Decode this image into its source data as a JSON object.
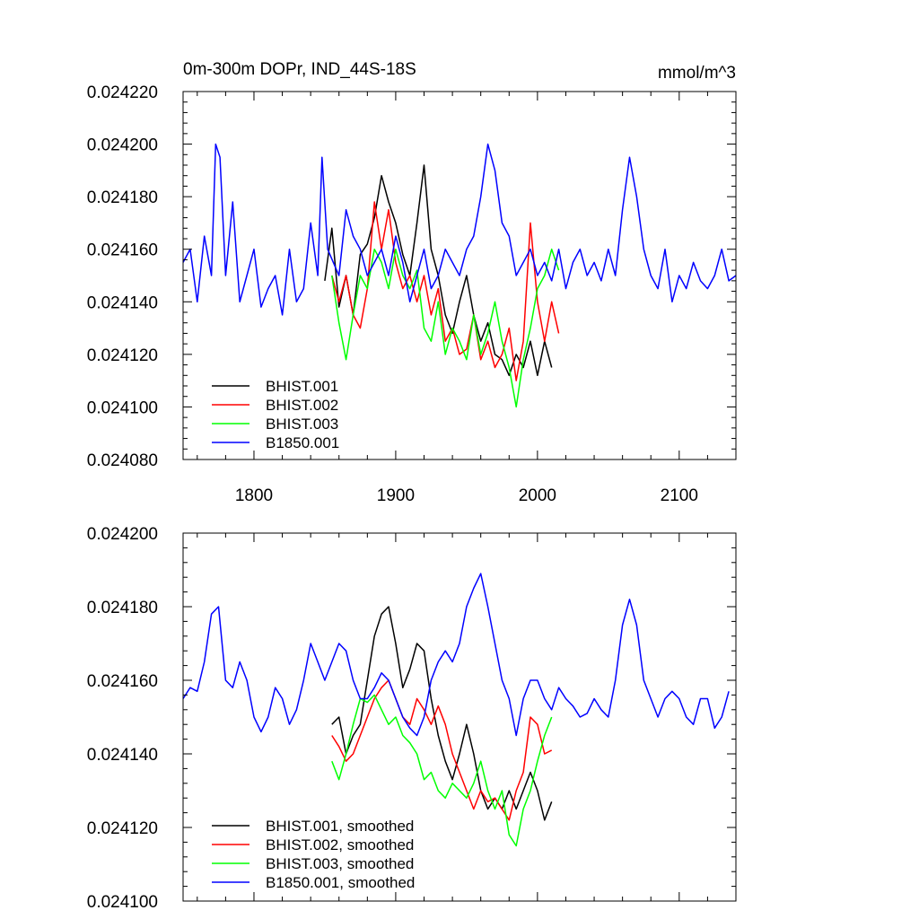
{
  "chart_data": [
    {
      "type": "line",
      "title": "0m-300m DOPr, IND_44S-18S",
      "units": "mmol/m^3",
      "xlim": [
        1750,
        2140
      ],
      "ylim": [
        0.02408,
        0.02422
      ],
      "xticks": [
        1800,
        1900,
        2000,
        2100
      ],
      "xtick_labels": [
        "1800",
        "1900",
        "2000",
        "2100"
      ],
      "yticks": [
        0.02408,
        0.0241,
        0.02412,
        0.02414,
        0.02416,
        0.02418,
        0.0242,
        0.02422
      ],
      "ytick_labels": [
        "0.024080",
        "0.024100",
        "0.024120",
        "0.024140",
        "0.024160",
        "0.024180",
        "0.024200",
        "0.024220"
      ],
      "legend_position": "bottom-left",
      "series": [
        {
          "name": "BHIST.001",
          "color": "#000000",
          "x": [
            1850,
            1855,
            1860,
            1865,
            1870,
            1875,
            1880,
            1885,
            1890,
            1895,
            1900,
            1905,
            1910,
            1915,
            1920,
            1925,
            1930,
            1935,
            1940,
            1945,
            1950,
            1955,
            1960,
            1965,
            1970,
            1975,
            1980,
            1985,
            1990,
            1995,
            2000,
            2005,
            2010
          ],
          "y": [
            0.024148,
            0.024168,
            0.024138,
            0.02415,
            0.024135,
            0.024158,
            0.024162,
            0.024172,
            0.024188,
            0.024178,
            0.02417,
            0.024158,
            0.02415,
            0.02417,
            0.024192,
            0.02416,
            0.02415,
            0.024135,
            0.024128,
            0.02414,
            0.02415,
            0.024135,
            0.024125,
            0.024132,
            0.02412,
            0.024118,
            0.024112,
            0.02412,
            0.024115,
            0.024125,
            0.024112,
            0.024125,
            0.024115
          ]
        },
        {
          "name": "BHIST.002",
          "color": "#ff0000",
          "x": [
            1855,
            1860,
            1865,
            1870,
            1875,
            1880,
            1885,
            1890,
            1895,
            1900,
            1905,
            1910,
            1915,
            1920,
            1925,
            1930,
            1935,
            1940,
            1945,
            1950,
            1955,
            1960,
            1965,
            1970,
            1975,
            1980,
            1985,
            1990,
            1995,
            2000,
            2005,
            2010,
            2015
          ],
          "y": [
            0.02415,
            0.02414,
            0.02415,
            0.024135,
            0.02413,
            0.024145,
            0.024178,
            0.02416,
            0.024175,
            0.024155,
            0.024145,
            0.02415,
            0.02414,
            0.02415,
            0.024135,
            0.024145,
            0.024125,
            0.02413,
            0.02412,
            0.024122,
            0.024135,
            0.024118,
            0.024125,
            0.024115,
            0.02412,
            0.02413,
            0.02411,
            0.024125,
            0.02417,
            0.02414,
            0.024125,
            0.02414,
            0.024128
          ]
        },
        {
          "name": "BHIST.003",
          "color": "#00ff00",
          "x": [
            1855,
            1860,
            1865,
            1870,
            1875,
            1880,
            1885,
            1890,
            1895,
            1900,
            1905,
            1910,
            1915,
            1920,
            1925,
            1930,
            1935,
            1940,
            1945,
            1950,
            1955,
            1960,
            1965,
            1970,
            1975,
            1980,
            1985,
            1990,
            1995,
            2000,
            2005,
            2010,
            2015
          ],
          "y": [
            0.02415,
            0.024132,
            0.024118,
            0.024135,
            0.02415,
            0.024145,
            0.02416,
            0.024155,
            0.024145,
            0.02416,
            0.02415,
            0.024145,
            0.024152,
            0.02413,
            0.024125,
            0.02414,
            0.02412,
            0.02413,
            0.024125,
            0.024118,
            0.024135,
            0.02412,
            0.024128,
            0.02414,
            0.024125,
            0.024115,
            0.0241,
            0.024118,
            0.02413,
            0.024145,
            0.02415,
            0.02416,
            0.024152
          ]
        },
        {
          "name": "B1850.001",
          "color": "#0000ff",
          "x": [
            1750,
            1755,
            1760,
            1765,
            1770,
            1773,
            1776,
            1780,
            1785,
            1790,
            1795,
            1800,
            1805,
            1810,
            1815,
            1820,
            1825,
            1830,
            1835,
            1840,
            1845,
            1848,
            1852,
            1856,
            1860,
            1865,
            1870,
            1875,
            1880,
            1885,
            1890,
            1895,
            1900,
            1905,
            1910,
            1915,
            1920,
            1925,
            1930,
            1935,
            1940,
            1945,
            1950,
            1955,
            1960,
            1965,
            1970,
            1975,
            1980,
            1985,
            1990,
            1995,
            2000,
            2005,
            2010,
            2015,
            2020,
            2025,
            2030,
            2035,
            2040,
            2045,
            2050,
            2055,
            2060,
            2065,
            2070,
            2075,
            2080,
            2085,
            2090,
            2095,
            2100,
            2105,
            2110,
            2115,
            2120,
            2125,
            2130,
            2135,
            2140
          ],
          "y": [
            0.024155,
            0.02416,
            0.02414,
            0.024165,
            0.02415,
            0.0242,
            0.024195,
            0.02415,
            0.024178,
            0.02414,
            0.02415,
            0.02416,
            0.024138,
            0.024145,
            0.02415,
            0.024135,
            0.02416,
            0.02414,
            0.024145,
            0.02417,
            0.02415,
            0.024195,
            0.02416,
            0.024155,
            0.02415,
            0.024175,
            0.024165,
            0.02416,
            0.02415,
            0.024155,
            0.02416,
            0.02415,
            0.024165,
            0.024155,
            0.02414,
            0.02415,
            0.02416,
            0.024145,
            0.02415,
            0.02416,
            0.024155,
            0.02415,
            0.02416,
            0.024165,
            0.02418,
            0.0242,
            0.02419,
            0.02417,
            0.024165,
            0.02415,
            0.024155,
            0.02416,
            0.02415,
            0.024155,
            0.024148,
            0.02416,
            0.024145,
            0.024155,
            0.02416,
            0.02415,
            0.024155,
            0.024148,
            0.02416,
            0.02415,
            0.024175,
            0.024195,
            0.02418,
            0.02416,
            0.02415,
            0.024145,
            0.02416,
            0.02414,
            0.02415,
            0.024145,
            0.024155,
            0.024148,
            0.024145,
            0.02415,
            0.02416,
            0.024148,
            0.02415
          ]
        }
      ]
    },
    {
      "type": "line",
      "title": "",
      "xlim": [
        1750,
        2140
      ],
      "ylim": [
        0.0241,
        0.0242
      ],
      "xticks": [
        1800,
        1900,
        2000,
        2100
      ],
      "yticks": [
        0.0241,
        0.02412,
        0.02414,
        0.02416,
        0.02418,
        0.0242
      ],
      "ytick_labels": [
        "0.024100",
        "0.024120",
        "0.024140",
        "0.024160",
        "0.024180",
        "0.024200"
      ],
      "legend_position": "bottom-left",
      "series": [
        {
          "name": "BHIST.001, smoothed",
          "color": "#000000",
          "x": [
            1855,
            1860,
            1865,
            1870,
            1875,
            1880,
            1885,
            1890,
            1895,
            1900,
            1905,
            1910,
            1915,
            1920,
            1925,
            1930,
            1935,
            1940,
            1945,
            1950,
            1955,
            1960,
            1965,
            1970,
            1975,
            1980,
            1985,
            1990,
            1995,
            2000,
            2005,
            2010
          ],
          "y": [
            0.024148,
            0.02415,
            0.02414,
            0.024145,
            0.024148,
            0.02416,
            0.024172,
            0.024178,
            0.02418,
            0.02417,
            0.024158,
            0.024163,
            0.02417,
            0.024168,
            0.024155,
            0.024145,
            0.024138,
            0.024133,
            0.02414,
            0.024148,
            0.02414,
            0.02413,
            0.024125,
            0.024128,
            0.024125,
            0.02413,
            0.024125,
            0.02413,
            0.024135,
            0.02413,
            0.024122,
            0.024127
          ]
        },
        {
          "name": "BHIST.002, smoothed",
          "color": "#ff0000",
          "x": [
            1855,
            1860,
            1865,
            1870,
            1875,
            1880,
            1885,
            1890,
            1895,
            1900,
            1905,
            1910,
            1915,
            1920,
            1925,
            1930,
            1935,
            1940,
            1945,
            1950,
            1955,
            1960,
            1965,
            1970,
            1975,
            1980,
            1985,
            1990,
            1995,
            2000,
            2005,
            2010
          ],
          "y": [
            0.024145,
            0.024142,
            0.024138,
            0.02414,
            0.024145,
            0.02415,
            0.024155,
            0.024158,
            0.02416,
            0.024155,
            0.02415,
            0.024148,
            0.024155,
            0.024152,
            0.024148,
            0.024153,
            0.024148,
            0.02414,
            0.024135,
            0.02413,
            0.024125,
            0.02413,
            0.024127,
            0.024128,
            0.024125,
            0.024122,
            0.02413,
            0.024135,
            0.02415,
            0.024148,
            0.02414,
            0.024141
          ]
        },
        {
          "name": "BHIST.003, smoothed",
          "color": "#00ff00",
          "x": [
            1855,
            1860,
            1865,
            1870,
            1875,
            1880,
            1885,
            1890,
            1895,
            1900,
            1905,
            1910,
            1915,
            1920,
            1925,
            1930,
            1935,
            1940,
            1945,
            1950,
            1955,
            1960,
            1965,
            1970,
            1975,
            1980,
            1985,
            1990,
            1995,
            2000,
            2005,
            2010
          ],
          "y": [
            0.024138,
            0.024133,
            0.02414,
            0.024148,
            0.024155,
            0.024154,
            0.024156,
            0.024152,
            0.024148,
            0.02415,
            0.024145,
            0.024143,
            0.02414,
            0.024133,
            0.024135,
            0.02413,
            0.024128,
            0.024132,
            0.02413,
            0.024128,
            0.024132,
            0.024138,
            0.02413,
            0.024125,
            0.02413,
            0.024118,
            0.024115,
            0.024125,
            0.02413,
            0.024138,
            0.024145,
            0.02415
          ]
        },
        {
          "name": "B1850.001, smoothed",
          "color": "#0000ff",
          "x": [
            1750,
            1755,
            1760,
            1765,
            1770,
            1775,
            1780,
            1785,
            1790,
            1795,
            1800,
            1805,
            1810,
            1815,
            1820,
            1825,
            1830,
            1835,
            1840,
            1845,
            1850,
            1855,
            1860,
            1865,
            1870,
            1875,
            1880,
            1885,
            1890,
            1895,
            1900,
            1905,
            1910,
            1915,
            1920,
            1925,
            1930,
            1935,
            1940,
            1945,
            1950,
            1955,
            1960,
            1965,
            1970,
            1975,
            1980,
            1985,
            1990,
            1995,
            2000,
            2005,
            2010,
            2015,
            2020,
            2025,
            2030,
            2035,
            2040,
            2045,
            2050,
            2055,
            2060,
            2065,
            2070,
            2075,
            2080,
            2085,
            2090,
            2095,
            2100,
            2105,
            2110,
            2115,
            2120,
            2125,
            2130,
            2135
          ],
          "y": [
            0.024155,
            0.024158,
            0.024157,
            0.024165,
            0.024178,
            0.02418,
            0.02416,
            0.024158,
            0.024165,
            0.02416,
            0.02415,
            0.024146,
            0.02415,
            0.024158,
            0.024155,
            0.024148,
            0.024152,
            0.02416,
            0.02417,
            0.024165,
            0.02416,
            0.024165,
            0.02417,
            0.024168,
            0.02416,
            0.024155,
            0.024155,
            0.024158,
            0.024162,
            0.02416,
            0.024155,
            0.02415,
            0.024147,
            0.024145,
            0.02415,
            0.02416,
            0.024165,
            0.024168,
            0.024165,
            0.02417,
            0.02418,
            0.024185,
            0.024189,
            0.02418,
            0.02417,
            0.02416,
            0.024155,
            0.024145,
            0.024155,
            0.02416,
            0.02416,
            0.024155,
            0.024152,
            0.024158,
            0.024155,
            0.024153,
            0.02415,
            0.024151,
            0.024155,
            0.024152,
            0.02415,
            0.02416,
            0.024175,
            0.024182,
            0.024175,
            0.02416,
            0.024155,
            0.02415,
            0.024155,
            0.024157,
            0.024155,
            0.02415,
            0.024148,
            0.024155,
            0.024155,
            0.024147,
            0.02415,
            0.024157
          ]
        }
      ]
    }
  ]
}
